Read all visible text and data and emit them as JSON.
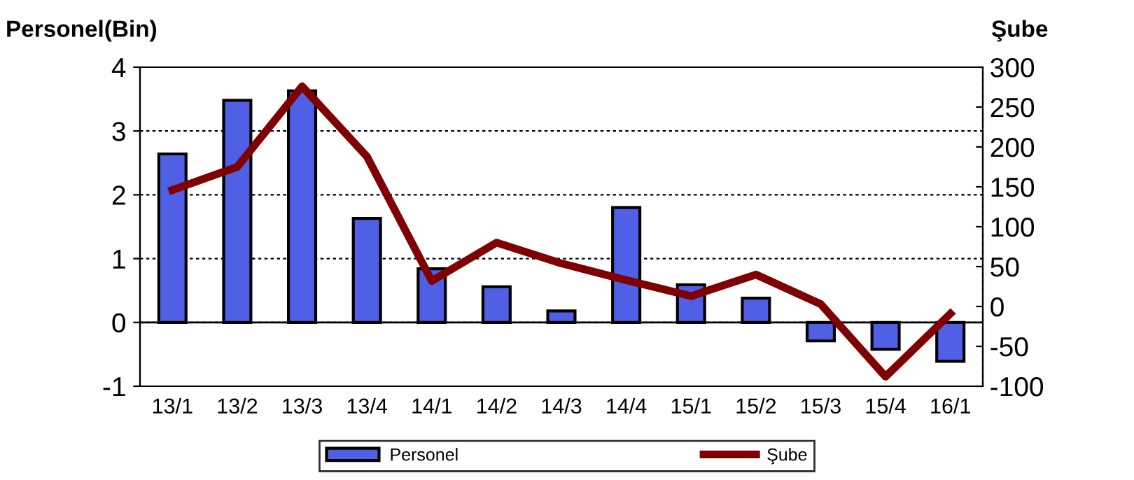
{
  "chart_data": {
    "type": "bar",
    "ylabel": "Personel(Bin)",
    "y2label": "Şube",
    "categories": [
      "13/1",
      "13/2",
      "13/3",
      "13/4",
      "14/1",
      "14/2",
      "14/3",
      "14/4",
      "15/1",
      "15/2",
      "15/3",
      "15/4",
      "16/1"
    ],
    "series": [
      {
        "name": "Personel",
        "color": "#4f5fe6",
        "values": [
          2.64,
          3.48,
          3.63,
          1.63,
          0.84,
          0.56,
          0.18,
          1.8,
          0.59,
          0.38,
          -0.29,
          -0.42,
          -0.61
        ]
      },
      {
        "name": "Şube",
        "type": "line",
        "axis": "y2",
        "color": "#7f0000",
        "values": [
          146,
          175,
          276,
          188,
          32,
          80,
          54,
          33,
          13,
          40,
          3,
          -88,
          -9
        ]
      }
    ],
    "ylim": [
      -1,
      4
    ],
    "yticks": [
      -1,
      0,
      1,
      2,
      3,
      4
    ],
    "y2lim": [
      -100,
      300
    ],
    "y2ticks": [
      -100,
      -50,
      0,
      50,
      100,
      150,
      200,
      250,
      300
    ],
    "grid": "y",
    "legend": "bottom",
    "marker": "none",
    "line_style": "solid"
  }
}
